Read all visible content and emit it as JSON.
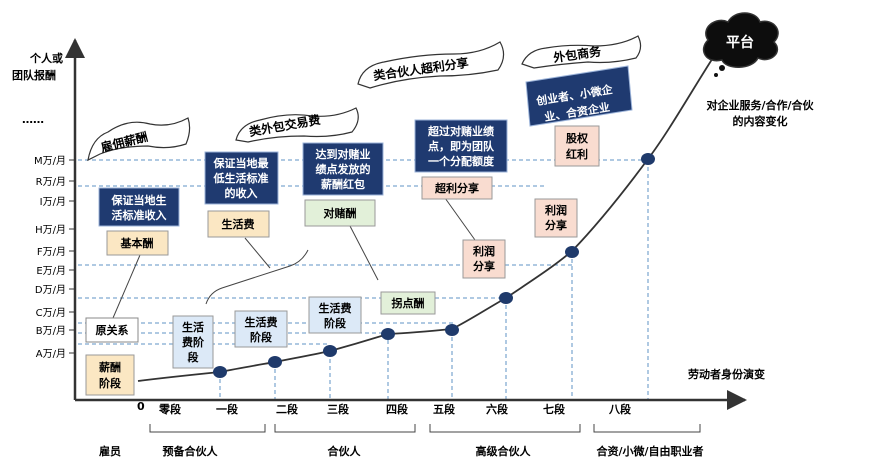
{
  "y_axis": {
    "title_lines": [
      "个人或",
      "团队报酬"
    ],
    "ellipsis": "……",
    "levels": [
      "M万/月",
      "R万/月",
      "I万/月",
      "H万/月",
      "F万/月",
      "E万/月",
      "D万/月",
      "C万/月",
      "B万/月",
      "A万/月"
    ]
  },
  "x_axis": {
    "title": "劳动者身份演变",
    "origin": "0",
    "stages": [
      "零段",
      "一段",
      "二段",
      "三段",
      "四段",
      "五段",
      "六段",
      "七段",
      "八段"
    ]
  },
  "identities": [
    "雇员",
    "预备合伙人",
    "合伙人",
    "高级合伙人",
    "合资/小微/自由职业者"
  ],
  "platform": {
    "label": "平台",
    "caption_lines": [
      "对企业服务/合作/合伙",
      "的内容变化"
    ]
  },
  "phases": [
    "雇佣薪酬",
    "类外包交易费",
    "类合伙人超利分享",
    "外包商务"
  ],
  "blue_notes": {
    "base": [
      "保证当地生",
      "活标准收入"
    ],
    "living": [
      "保证当地最",
      "低生活标准",
      "的收入"
    ],
    "bet": [
      "达到对赌业",
      "绩点发放的",
      "薪酬红包"
    ],
    "excess": [
      "超过对赌业绩",
      "点，即为团队",
      "一个分配额度"
    ],
    "business": [
      "创业者、小微企",
      "业、合资企业"
    ]
  },
  "tags": {
    "base_pay": "基本酬",
    "living_cost": "生活费",
    "bet_pay": "对赌酬",
    "excess_share": "超利分享",
    "equity": [
      "股权",
      "红利"
    ],
    "original_relation": "原关系",
    "salary_stage": [
      "薪酬",
      "阶段"
    ],
    "living_stage_1": [
      "生活",
      "费阶",
      "段"
    ],
    "living_stage_2": [
      "生活费",
      "阶段"
    ],
    "living_stage_3": [
      "生活费",
      "阶段"
    ],
    "inflection": "拐点酬",
    "profit_share_1": [
      "利润",
      "分享"
    ],
    "profit_share_2": [
      "利润",
      "分享"
    ]
  },
  "colors": {
    "navy_box": "#1f3a70",
    "dot": "#1f3a6b",
    "tan": "#fbe7c3",
    "green": "#e2f0d9",
    "blue_light": "#dce9f7",
    "pink": "#f9dcd0",
    "dashed_guides": "#5f93c5"
  }
}
